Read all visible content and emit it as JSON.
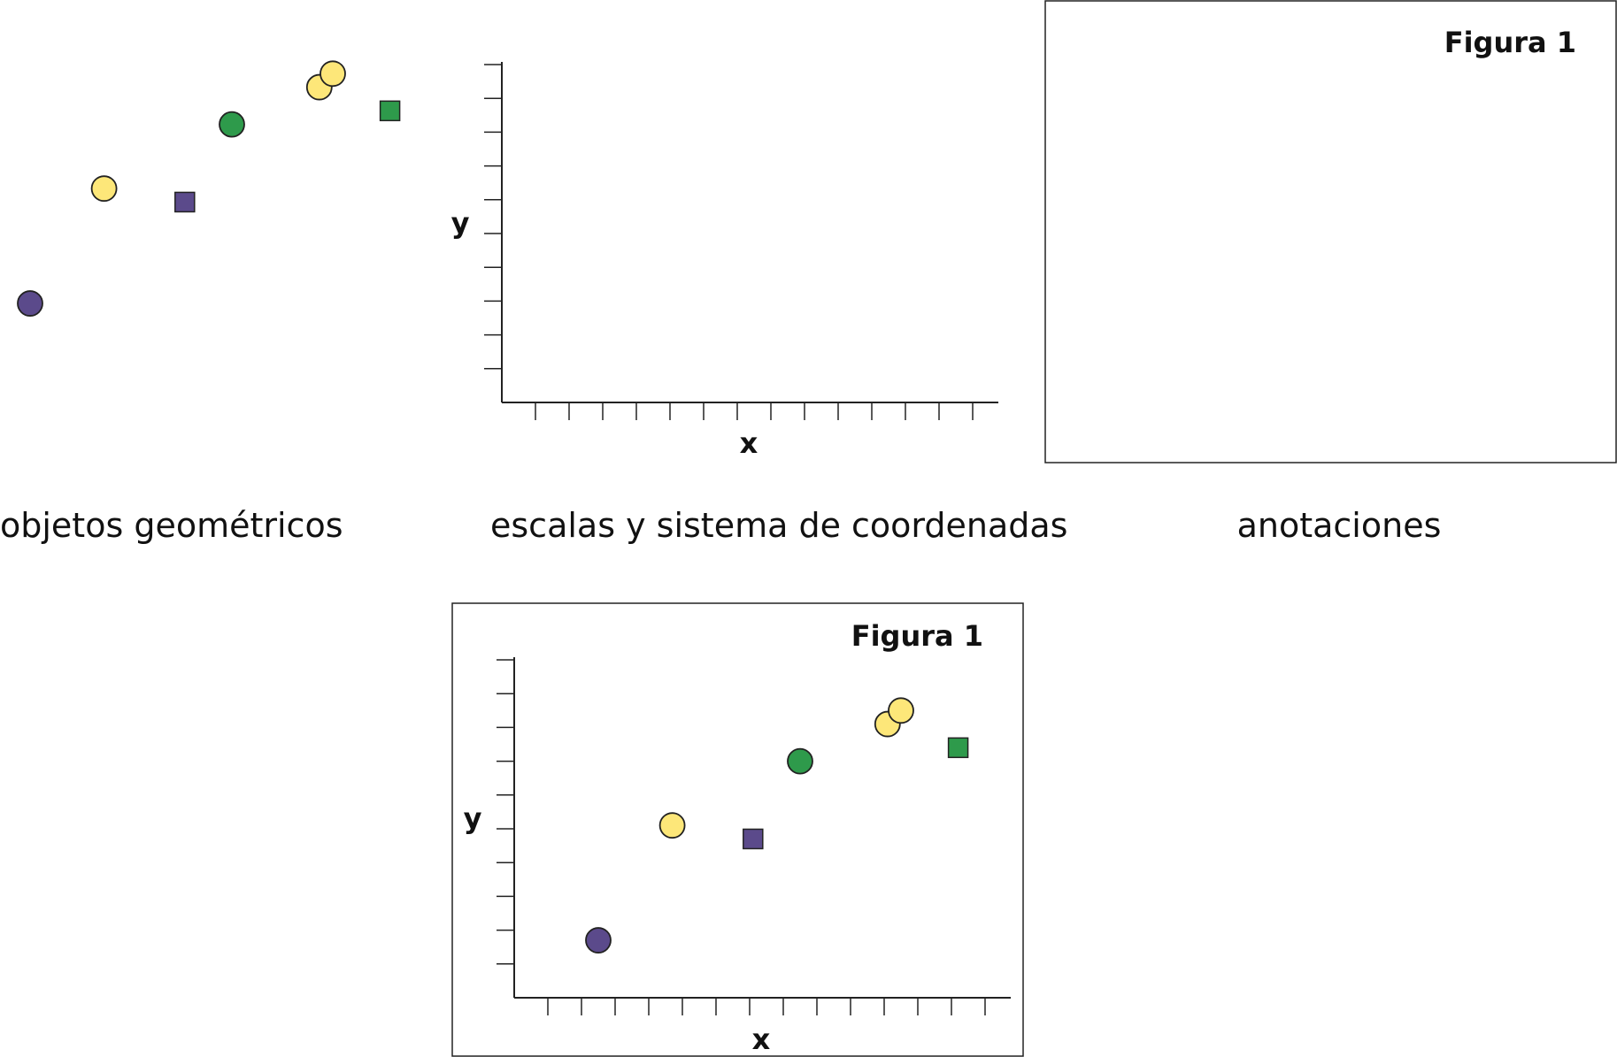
{
  "panels": {
    "geometric_objects": {
      "caption": "objetos geométricos"
    },
    "scales": {
      "caption": "escalas y sistema de coordenadas",
      "x_label": "x",
      "y_label": "y"
    },
    "annotations": {
      "caption": "anotaciones",
      "title": "Figura 1"
    },
    "combined": {
      "title": "Figura 1",
      "x_label": "x",
      "y_label": "y"
    }
  },
  "chart_data": {
    "type": "scatter",
    "title": "Figura 1",
    "xlabel": "x",
    "ylabel": "y",
    "xlim": [
      0,
      15
    ],
    "ylim": [
      0,
      10
    ],
    "x_ticks": 14,
    "y_ticks": 10,
    "points": [
      {
        "x": 2.5,
        "y": 1.7,
        "shape": "circle",
        "color": "#5b4a8b"
      },
      {
        "x": 4.7,
        "y": 5.1,
        "shape": "circle",
        "color": "#fde779"
      },
      {
        "x": 7.1,
        "y": 4.7,
        "shape": "square",
        "color": "#5b4a8b"
      },
      {
        "x": 8.5,
        "y": 7.0,
        "shape": "circle",
        "color": "#2e9a4b"
      },
      {
        "x": 11.1,
        "y": 8.1,
        "shape": "circle",
        "color": "#fde779"
      },
      {
        "x": 11.5,
        "y": 8.5,
        "shape": "circle",
        "color": "#fde779"
      },
      {
        "x": 13.2,
        "y": 7.4,
        "shape": "square",
        "color": "#2e9a4b"
      }
    ]
  }
}
